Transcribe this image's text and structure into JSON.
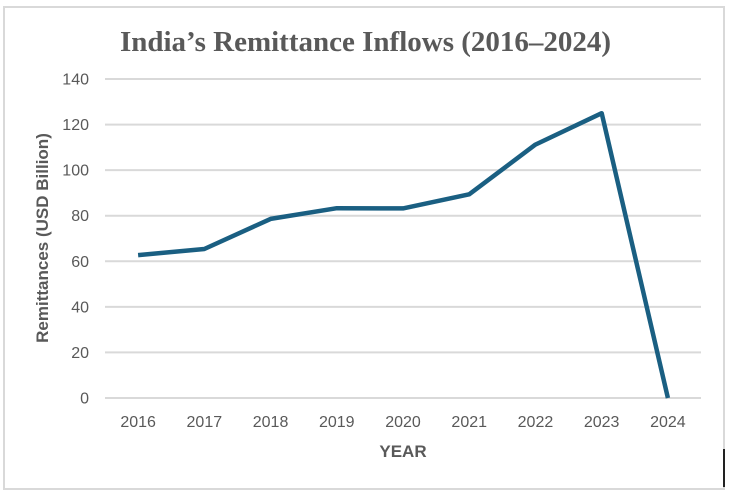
{
  "chart_data": {
    "type": "line",
    "title": "India’s Remittance Inflows (2016–2024)",
    "xlabel": "YEAR",
    "ylabel": "Remittances (USD Billion)",
    "categories": [
      "2016",
      "2017",
      "2018",
      "2019",
      "2020",
      "2021",
      "2022",
      "2023",
      "2024"
    ],
    "series": [
      {
        "name": "Remittances (USD Billion)",
        "values": [
          62.7,
          65.4,
          78.6,
          83.3,
          83.2,
          89.4,
          111.2,
          125.0,
          0
        ],
        "color": "#1a5f82"
      }
    ],
    "ylim": [
      0,
      140
    ],
    "yticks": [
      0,
      20,
      40,
      60,
      80,
      100,
      120,
      140
    ],
    "grid": true,
    "gridColor": "#d9d9d9",
    "legend": "none"
  }
}
